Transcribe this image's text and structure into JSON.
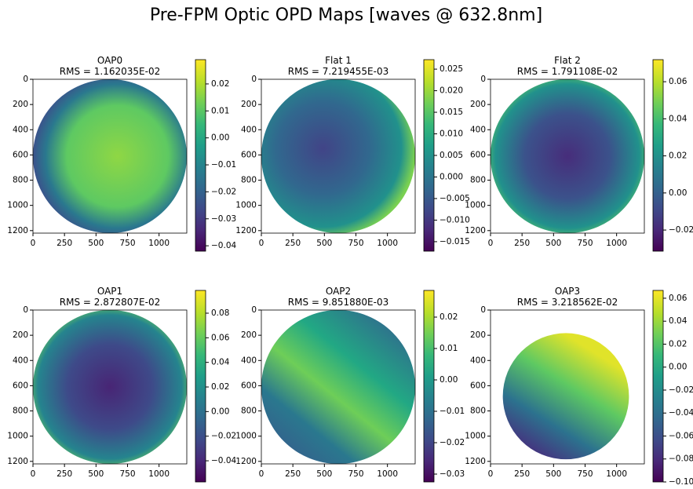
{
  "title": "Pre-FPM Optic OPD Maps [waves @ 632.8nm]",
  "chart_data": [
    {
      "type": "image",
      "title": "OAP0",
      "subtitle": "RMS = 1.162035E-02",
      "xlim": [
        0,
        1220
      ],
      "ylim": [
        1220,
        0
      ],
      "xticks": [
        0,
        250,
        500,
        750,
        1000
      ],
      "yticks": [
        0,
        200,
        400,
        600,
        800,
        1000,
        1200
      ],
      "colormap": "viridis",
      "clim": [
        -0.042,
        0.029
      ],
      "cticks": [
        0.02,
        0.01,
        {
          "value": 0,
          "label": "0.00"
        },
        {
          "value": -0.01,
          "label": "−0.01"
        },
        {
          "value": -0.02,
          "label": "−0.02"
        },
        {
          "value": -0.03,
          "label": "−0.03"
        },
        {
          "value": -0.04,
          "label": "−0.04"
        }
      ]
    },
    {
      "type": "image",
      "title": "Flat 1",
      "subtitle": "RMS = 7.219455E-03",
      "xlim": [
        0,
        1220
      ],
      "ylim": [
        1220,
        0
      ],
      "xticks": [
        0,
        250,
        500,
        750,
        1000
      ],
      "yticks": [
        0,
        200,
        400,
        600,
        800,
        1000,
        1200
      ],
      "colormap": "viridis",
      "clim": [
        -0.0172,
        0.0272
      ],
      "cticks": [
        0.025,
        {
          "value": 0.02,
          "label": "0.020"
        },
        0.015,
        {
          "value": 0.01,
          "label": "0.010"
        },
        0.005,
        {
          "value": 0,
          "label": "0.000"
        },
        {
          "value": -0.005,
          "label": "−0.005"
        },
        {
          "value": -0.01,
          "label": "−0.010"
        },
        {
          "value": -0.015,
          "label": "−0.015"
        }
      ]
    },
    {
      "type": "image",
      "title": "Flat 2",
      "subtitle": "RMS = 1.791108E-02",
      "xlim": [
        0,
        1220
      ],
      "ylim": [
        1220,
        0
      ],
      "xticks": [
        0,
        250,
        500,
        750,
        1000
      ],
      "yticks": [
        0,
        200,
        400,
        600,
        800,
        1000,
        1200
      ],
      "colormap": "viridis",
      "clim": [
        -0.0314,
        0.0719
      ],
      "cticks": [
        0.06,
        0.04,
        0.02,
        {
          "value": 0,
          "label": "0.00"
        },
        {
          "value": -0.02,
          "label": "−0.02"
        }
      ]
    },
    {
      "type": "image",
      "title": "OAP1",
      "subtitle": "RMS = 2.872807E-02",
      "xlim": [
        0,
        1220
      ],
      "ylim": [
        1220,
        0
      ],
      "xticks": [
        0,
        250,
        500,
        750,
        1000
      ],
      "yticks": [
        0,
        200,
        400,
        600,
        800,
        1000,
        1200
      ],
      "colormap": "viridis",
      "clim": [
        -0.0572,
        0.0985
      ],
      "cticks": [
        0.08,
        0.06,
        0.04,
        0.02,
        {
          "value": 0,
          "label": "0.00"
        },
        {
          "value": -0.02,
          "label": "−0.02"
        },
        {
          "value": -0.04,
          "label": "−0.04"
        }
      ]
    },
    {
      "type": "image",
      "title": "OAP2",
      "subtitle": "RMS = 9.851880E-03",
      "xlim": [
        0,
        1220
      ],
      "ylim": [
        1220,
        0
      ],
      "xticks": [
        0,
        250,
        500,
        750,
        1000
      ],
      "yticks": [
        0,
        200,
        400,
        600,
        800,
        1000,
        1200
      ],
      "colormap": "viridis",
      "clim": [
        -0.0325,
        0.0285
      ],
      "cticks": [
        0.02,
        0.01,
        {
          "value": 0,
          "label": "0.00"
        },
        {
          "value": -0.01,
          "label": "−0.01"
        },
        {
          "value": -0.02,
          "label": "−0.02"
        },
        {
          "value": -0.03,
          "label": "−0.03"
        }
      ]
    },
    {
      "type": "image",
      "title": "OAP3",
      "subtitle": "RMS = 3.218562E-02",
      "xlim": [
        0,
        1220
      ],
      "ylim": [
        1220,
        0
      ],
      "xticks": [
        0,
        250,
        500,
        750,
        1000
      ],
      "yticks": [
        0,
        200,
        400,
        600,
        800,
        1000,
        1200
      ],
      "colormap": "viridis",
      "clim": [
        -0.1,
        0.0668
      ],
      "cticks": [
        0.06,
        0.04,
        0.02,
        {
          "value": 0,
          "label": "0.00"
        },
        {
          "value": -0.02,
          "label": "−0.02"
        },
        {
          "value": -0.04,
          "label": "−0.04"
        },
        {
          "value": -0.06,
          "label": "−0.06"
        },
        {
          "value": -0.08,
          "label": "−0.08"
        },
        {
          "value": -0.1,
          "label": "−0.10"
        }
      ]
    }
  ]
}
